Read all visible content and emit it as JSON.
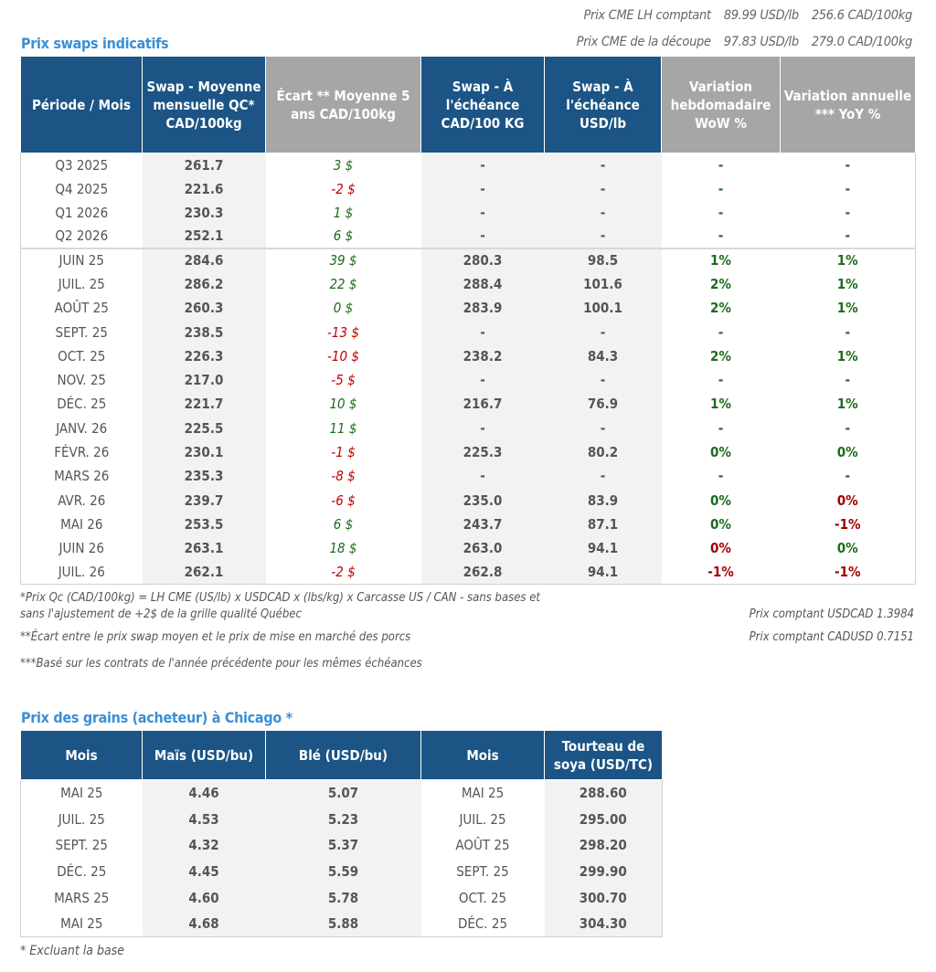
{
  "cme": [
    {
      "label": "Prix CME LH comptant",
      "usd": "89.99 USD/lb",
      "cad": "256.6 CAD/100kg"
    },
    {
      "label": "Prix CME de la découpe",
      "usd": "97.83 USD/lb",
      "cad": "279.0 CAD/100kg"
    }
  ],
  "swaps": {
    "title": "Prix swaps indicatifs",
    "headers": [
      "Période / Mois",
      "Swap - Moyenne mensuelle QC* CAD/100kg",
      "Écart ** Moyenne 5 ans CAD/100kg",
      "Swap - À l'échéance CAD/100 KG",
      "Swap - À l'échéance USD/lb",
      "Variation hebdomadaire WoW %",
      "Variation annuelle *** YoY %"
    ],
    "quarters": [
      [
        "Q3 2025",
        "261.7",
        "3 $",
        "-",
        "-",
        "-",
        "-"
      ],
      [
        "Q4 2025",
        "221.6",
        "-2 $",
        "-",
        "-",
        "-",
        "-"
      ],
      [
        "Q1 2026",
        "230.3",
        "1 $",
        "-",
        "-",
        "-",
        "-"
      ],
      [
        "Q2 2026",
        "252.1",
        "6 $",
        "-",
        "-",
        "-",
        "-"
      ]
    ],
    "months": [
      [
        "JUIN 25",
        "284.6",
        "39 $",
        "280.3",
        "98.5",
        "1%",
        "1%"
      ],
      [
        "JUIL. 25",
        "286.2",
        "22 $",
        "288.4",
        "101.6",
        "2%",
        "1%"
      ],
      [
        "AOÛT 25",
        "260.3",
        "0 $",
        "283.9",
        "100.1",
        "2%",
        "1%"
      ],
      [
        "SEPT. 25",
        "238.5",
        "-13 $",
        "-",
        "-",
        "-",
        "-"
      ],
      [
        "OCT. 25",
        "226.3",
        "-10 $",
        "238.2",
        "84.3",
        "2%",
        "1%"
      ],
      [
        "NOV. 25",
        "217.0",
        "-5 $",
        "-",
        "-",
        "-",
        "-"
      ],
      [
        "DÉC. 25",
        "221.7",
        "10 $",
        "216.7",
        "76.9",
        "1%",
        "1%"
      ],
      [
        "JANV. 26",
        "225.5",
        "11 $",
        "-",
        "-",
        "-",
        "-"
      ],
      [
        "FÉVR. 26",
        "230.1",
        "-1 $",
        "225.3",
        "80.2",
        "0%",
        "0%"
      ],
      [
        "MARS 26",
        "235.3",
        "-8 $",
        "-",
        "-",
        "-",
        "-"
      ],
      [
        "AVR. 26",
        "239.7",
        "-6 $",
        "235.0",
        "83.9",
        "0%",
        "0%"
      ],
      [
        "MAI 26",
        "253.5",
        "6 $",
        "243.7",
        "87.1",
        "0%",
        "-1%"
      ],
      [
        "JUIN 26",
        "263.1",
        "18 $",
        "263.0",
        "94.1",
        "0%",
        "0%"
      ],
      [
        "JUIL. 26",
        "262.1",
        "-2 $",
        "262.8",
        "94.1",
        "-1%",
        "-1%"
      ]
    ],
    "month_colors": [
      [
        "g",
        "g",
        "g"
      ],
      [
        "g",
        "g",
        "g"
      ],
      [
        "g",
        "g",
        "g"
      ],
      [
        "r",
        "g",
        "g"
      ],
      [
        "r",
        "g",
        "g"
      ],
      [
        "r",
        "g",
        "g"
      ],
      [
        "g",
        "g",
        "g"
      ],
      [
        "g",
        "g",
        "g"
      ],
      [
        "r",
        "g",
        "g"
      ],
      [
        "r",
        "g",
        "g"
      ],
      [
        "r",
        "g",
        "r"
      ],
      [
        "g",
        "g",
        "r"
      ],
      [
        "g",
        "r",
        "g"
      ],
      [
        "r",
        "r",
        "r"
      ]
    ],
    "quarter_colors": [
      [
        "g",
        "g",
        "g"
      ],
      [
        "r",
        "g",
        "g"
      ],
      [
        "g",
        "g",
        "g"
      ],
      [
        "g",
        "g",
        "g"
      ]
    ]
  },
  "notes": {
    "n1a": "*Prix Qc (CAD/100kg) = LH CME (US/lb) x USDCAD x (lbs/kg) x Carcasse US / CAN - sans bases et",
    "n1b": "sans l'ajustement de +2$ de la grille qualité Québec",
    "n2": "**Écart entre le prix swap moyen et le prix de mise en marché des porcs",
    "n3": "***Basé sur les contrats de l'année précédente pour les mêmes échéances",
    "usdcad": "Prix comptant USDCAD 1.3984",
    "cadusd": "Prix comptant CADUSD 0.7151"
  },
  "grains": {
    "title": "Prix des grains (acheteur) à Chicago *",
    "headers": [
      "Mois",
      "Maïs (USD/bu)",
      "Blé (USD/bu)",
      "Mois",
      "Tourteau de soya (USD/TC)"
    ],
    "rows": [
      [
        "MAI 25",
        "4.46",
        "5.07",
        "MAI 25",
        "288.60"
      ],
      [
        "JUIL. 25",
        "4.53",
        "5.23",
        "JUIL. 25",
        "295.00"
      ],
      [
        "SEPT. 25",
        "4.32",
        "5.37",
        "AOÛT 25",
        "298.20"
      ],
      [
        "DÉC. 25",
        "4.45",
        "5.59",
        "SEPT. 25",
        "299.90"
      ],
      [
        "MARS 25",
        "4.60",
        "5.78",
        "OCT. 25",
        "300.70"
      ],
      [
        "MAI 25",
        "4.68",
        "5.88",
        "DÉC. 25",
        "304.30"
      ]
    ],
    "footnote": "* Excluant la base"
  }
}
